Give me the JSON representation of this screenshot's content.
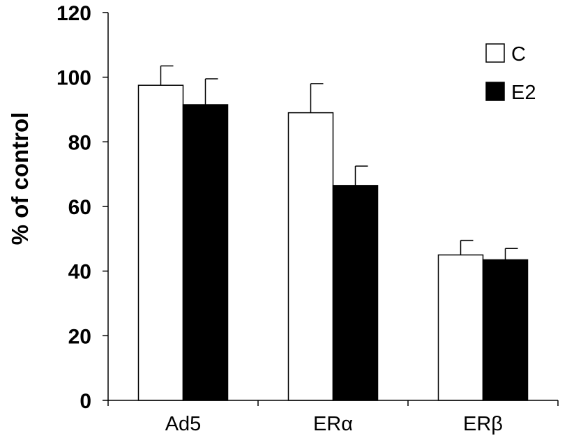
{
  "chart_data": {
    "type": "bar",
    "title": "",
    "xlabel": "",
    "ylabel": "% of control",
    "ylim": [
      0,
      120
    ],
    "yticks": [
      0,
      20,
      40,
      60,
      80,
      100,
      120
    ],
    "categories": [
      "Ad5",
      "ERα",
      "ERβ"
    ],
    "series": [
      {
        "name": "C",
        "values": [
          97.5,
          89,
          45
        ],
        "errors": [
          6,
          9,
          4.5
        ],
        "color": "#ffffff"
      },
      {
        "name": "E2",
        "values": [
          91.5,
          66.5,
          43.5
        ],
        "errors": [
          8,
          6,
          3.5
        ],
        "color": "#000000"
      }
    ],
    "grid": false,
    "legend": "top-right"
  }
}
